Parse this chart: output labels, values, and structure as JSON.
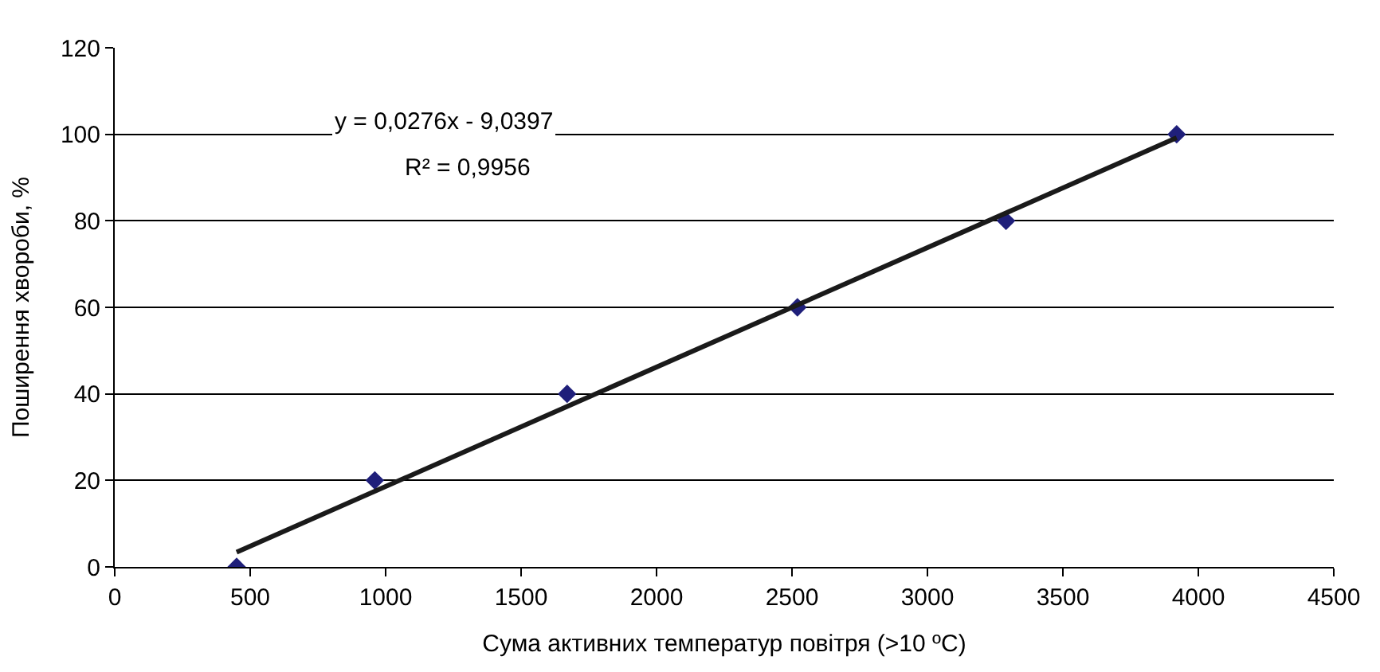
{
  "chart_data": {
    "type": "scatter",
    "xlabel": "Сума активних температур повітря (>10 ºC)",
    "ylabel": "Поширення хвороби, %",
    "x": [
      450,
      960,
      1670,
      2520,
      3290,
      3920
    ],
    "series": [
      {
        "color": "#1f1f7a",
        "marker": "diamond",
        "values": [
          0,
          20,
          40,
          60,
          80,
          100
        ]
      },
      {
        "type": "line",
        "color": "#1a1a1a",
        "line_style": "solid",
        "marker": "none",
        "x": [
          450,
          3920
        ],
        "values": [
          3.4,
          99.2
        ]
      }
    ],
    "annotations": [
      "y = 0,0276x - 9,0397",
      "R² = 0,9956"
    ],
    "xlim": [
      0,
      4500
    ],
    "xticks": [
      0,
      500,
      1000,
      1500,
      2000,
      2500,
      3000,
      3500,
      4000,
      4500
    ],
    "ylim": [
      0,
      120
    ],
    "yticks": [
      0,
      20,
      40,
      60,
      80,
      100,
      120
    ],
    "grid": "y",
    "legend": false
  }
}
